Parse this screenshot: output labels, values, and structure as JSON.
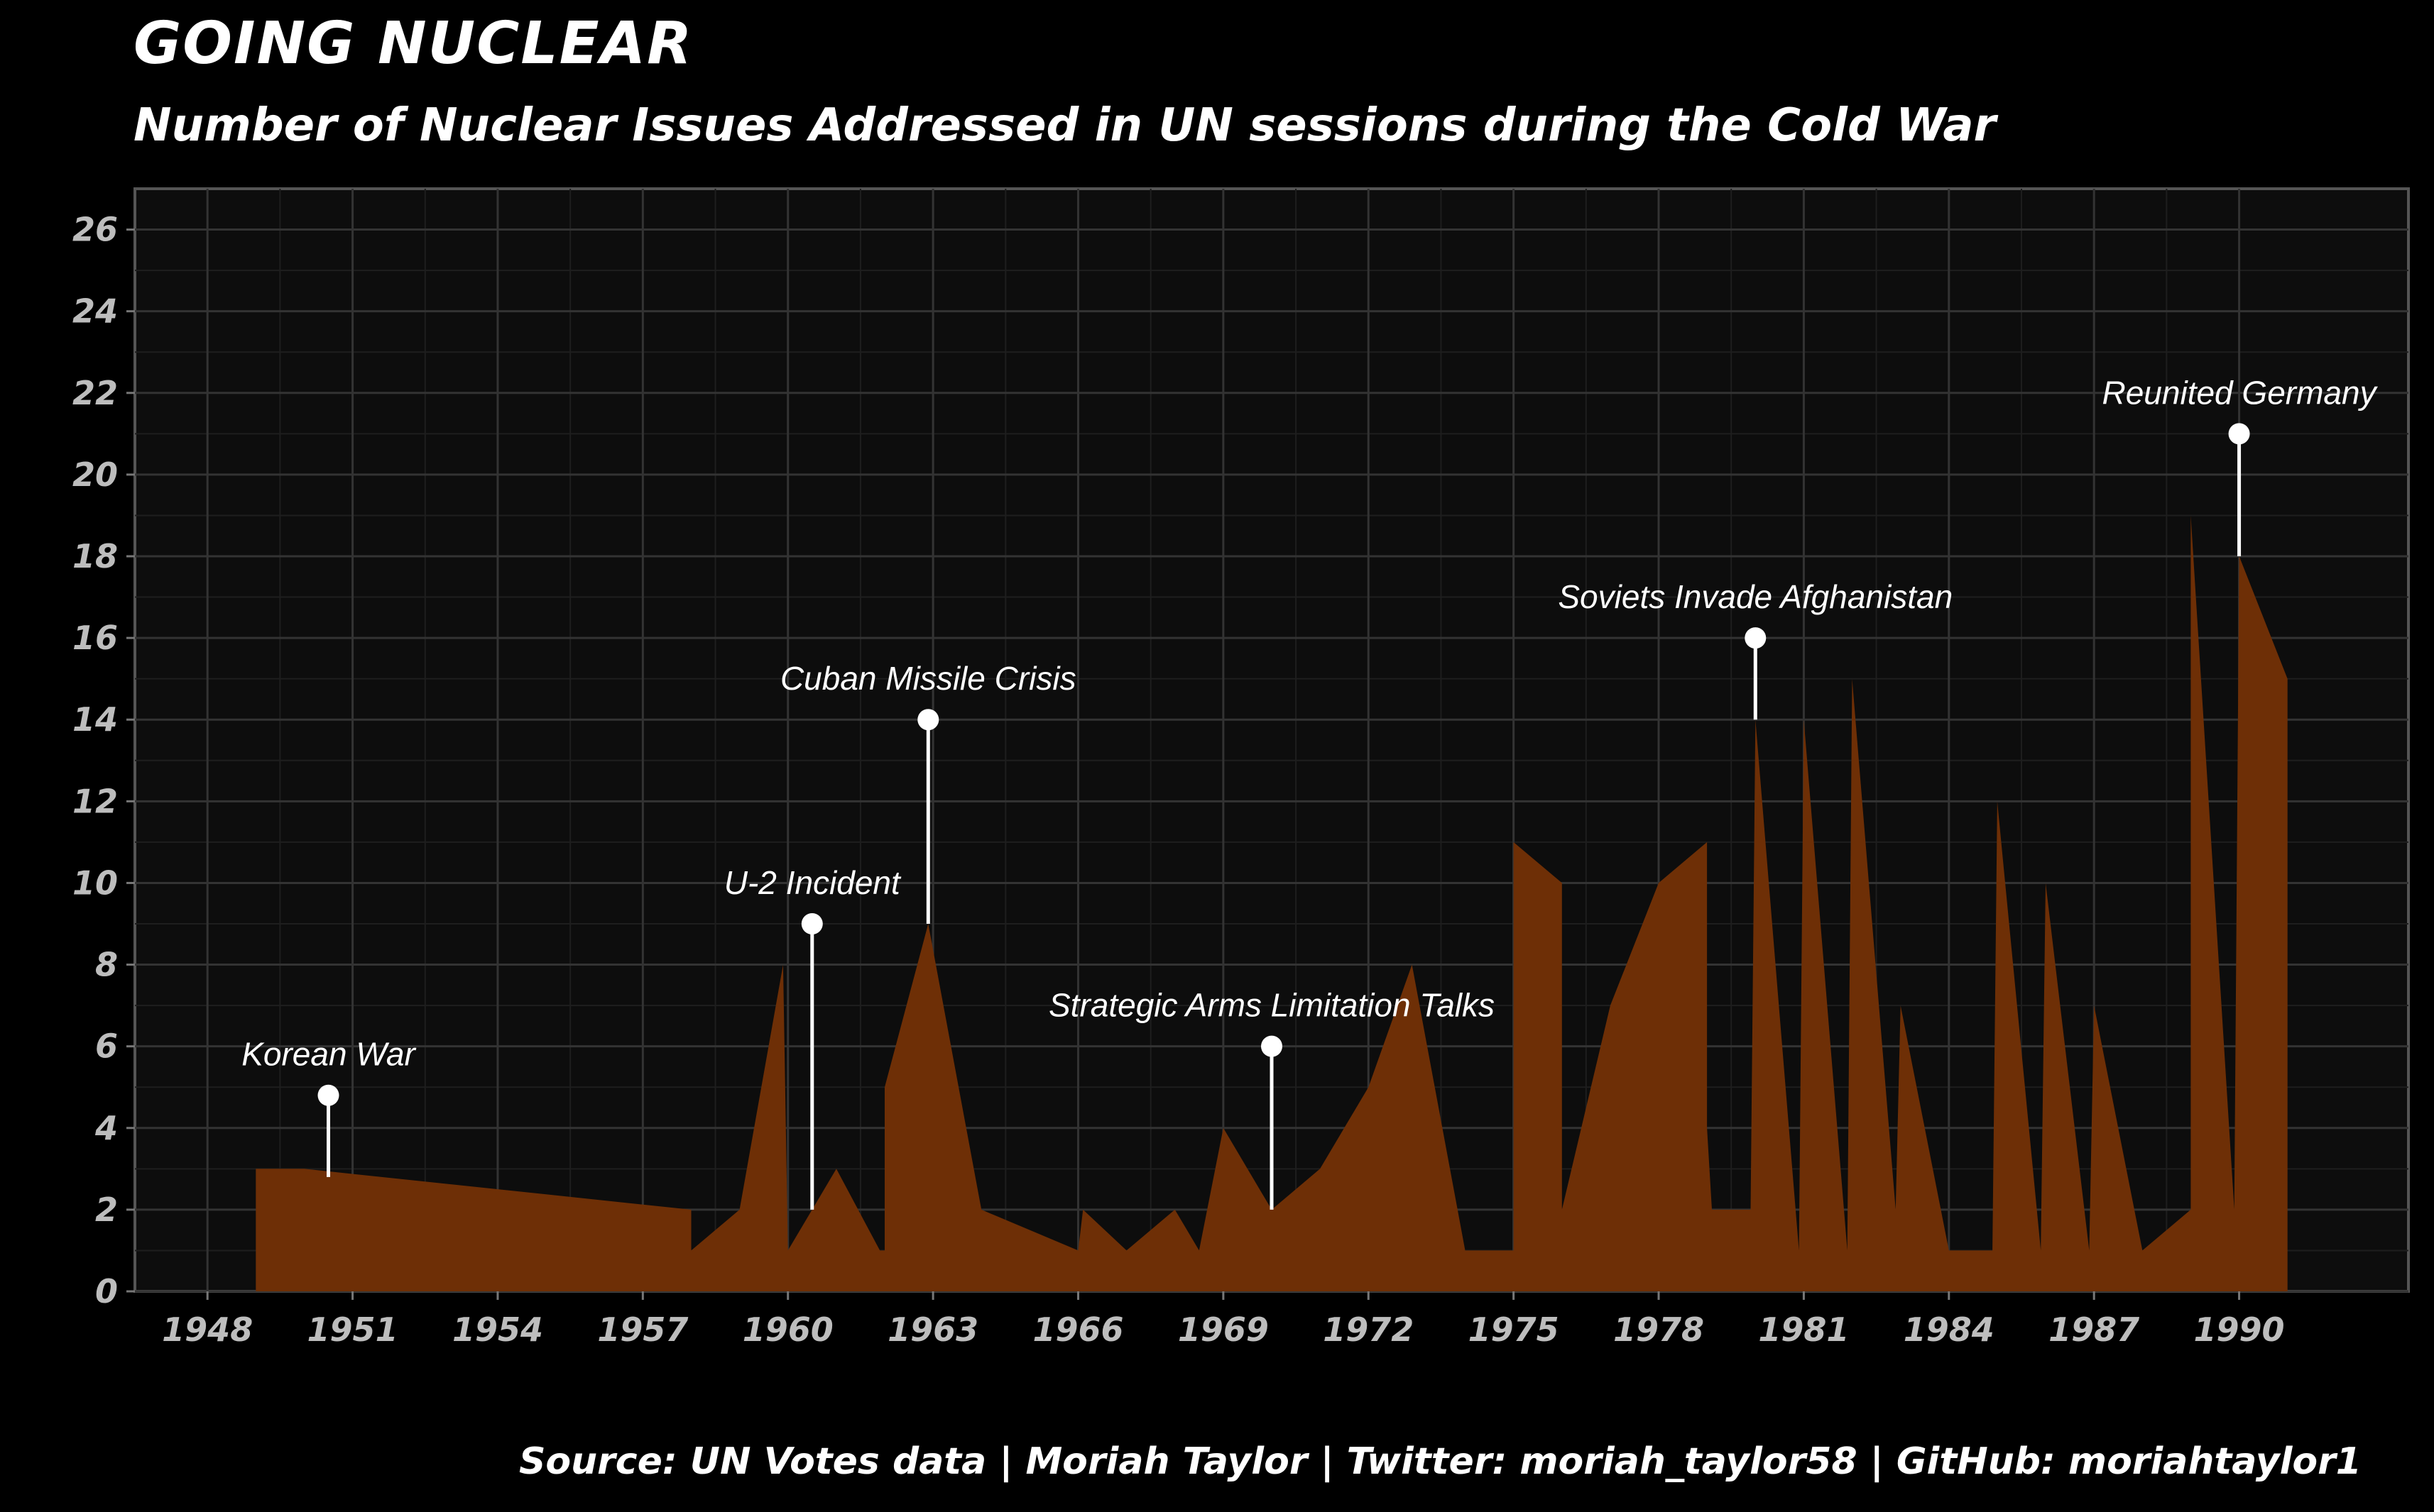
{
  "header": {
    "title": "GOING NUCLEAR",
    "subtitle": "Number of Nuclear Issues Addressed in UN sessions during the Cold War"
  },
  "footer": {
    "caption": "Source: UN Votes data | Moriah Taylor | Twitter: moriah_taylor58 | GitHub: moriahtaylor1"
  },
  "colors": {
    "background": "#000000",
    "panel": "#0d0d0d",
    "grid": "#333333",
    "area": "#6e2f06",
    "annotation": "#ffffff",
    "axis_text": "#bdbdbd"
  },
  "chart_data": {
    "type": "area",
    "title": "GOING NUCLEAR",
    "subtitle": "Number of Nuclear Issues Addressed in UN sessions during the Cold War",
    "xlabel": "",
    "ylabel": "",
    "xlim": [
      1946.5,
      1993.5
    ],
    "ylim": [
      0,
      27
    ],
    "x_ticks": [
      1948,
      1951,
      1954,
      1957,
      1960,
      1963,
      1966,
      1969,
      1972,
      1975,
      1978,
      1981,
      1984,
      1987,
      1990
    ],
    "x_tick_labels": [
      "1948",
      "1951",
      "1954",
      "1957",
      "1960",
      "1963",
      "1966",
      "1969",
      "1972",
      "1975",
      "1978",
      "1981",
      "1984",
      "1987",
      "1990"
    ],
    "y_ticks": [
      0,
      2,
      4,
      6,
      8,
      10,
      12,
      14,
      16,
      18,
      20,
      22,
      24,
      26
    ],
    "y_tick_labels": [
      "0",
      "2",
      "4",
      "6",
      "8",
      "10",
      "12",
      "14",
      "16",
      "18",
      "20",
      "22",
      "24",
      "26"
    ],
    "grid": true,
    "series": [
      {
        "name": "Nuclear issues",
        "points": [
          [
            1949.0,
            0
          ],
          [
            1949.0,
            3
          ],
          [
            1950.0,
            3
          ],
          [
            1958.0,
            2
          ],
          [
            1958.0,
            1
          ],
          [
            1959.0,
            2
          ],
          [
            1959.9,
            8
          ],
          [
            1960.0,
            1
          ],
          [
            1961.0,
            3
          ],
          [
            1961.9,
            1
          ],
          [
            1962.0,
            1
          ],
          [
            1962.0,
            5
          ],
          [
            1962.9,
            9
          ],
          [
            1964.0,
            2
          ],
          [
            1966.0,
            1
          ],
          [
            1966.1,
            2
          ],
          [
            1967.0,
            1
          ],
          [
            1968.0,
            2
          ],
          [
            1968.5,
            1
          ],
          [
            1969.0,
            4
          ],
          [
            1970.0,
            2
          ],
          [
            1971.0,
            3
          ],
          [
            1972.0,
            5
          ],
          [
            1972.9,
            8
          ],
          [
            1974.0,
            1
          ],
          [
            1975.0,
            1
          ],
          [
            1975.0,
            11
          ],
          [
            1976.0,
            10
          ],
          [
            1976.0,
            2
          ],
          [
            1977.0,
            7
          ],
          [
            1978.0,
            10
          ],
          [
            1979.0,
            11
          ],
          [
            1979.0,
            4
          ],
          [
            1979.1,
            2
          ],
          [
            1979.9,
            2
          ],
          [
            1980.0,
            14
          ],
          [
            1980.9,
            1
          ],
          [
            1981.0,
            14
          ],
          [
            1981.9,
            1
          ],
          [
            1982.0,
            15
          ],
          [
            1982.9,
            2
          ],
          [
            1983.0,
            7
          ],
          [
            1984.0,
            1
          ],
          [
            1984.9,
            1
          ],
          [
            1985.0,
            12
          ],
          [
            1985.9,
            1
          ],
          [
            1986.0,
            10
          ],
          [
            1986.9,
            1
          ],
          [
            1987.0,
            7
          ],
          [
            1988.0,
            1
          ],
          [
            1989.0,
            2
          ],
          [
            1989.0,
            19
          ],
          [
            1989.9,
            2
          ],
          [
            1990.0,
            18
          ],
          [
            1991.0,
            15
          ],
          [
            1991.0,
            0
          ]
        ]
      }
    ],
    "annotations": [
      {
        "label": "Korean War",
        "x": 1950.5,
        "y_point": 4.8,
        "y_base": 2.8
      },
      {
        "label": "U-2 Incident",
        "x": 1960.5,
        "y_point": 9,
        "y_base": 2
      },
      {
        "label": "Cuban Missile Crisis",
        "x": 1962.9,
        "y_point": 14,
        "y_base": 9
      },
      {
        "label": "Strategic Arms Limitation Talks",
        "x": 1970.0,
        "y_point": 6,
        "y_base": 2
      },
      {
        "label": "Soviets Invade Afghanistan",
        "x": 1980.0,
        "y_point": 16,
        "y_base": 14
      },
      {
        "label": "Reunited Germany",
        "x": 1990.0,
        "y_point": 21,
        "y_base": 18
      }
    ]
  }
}
